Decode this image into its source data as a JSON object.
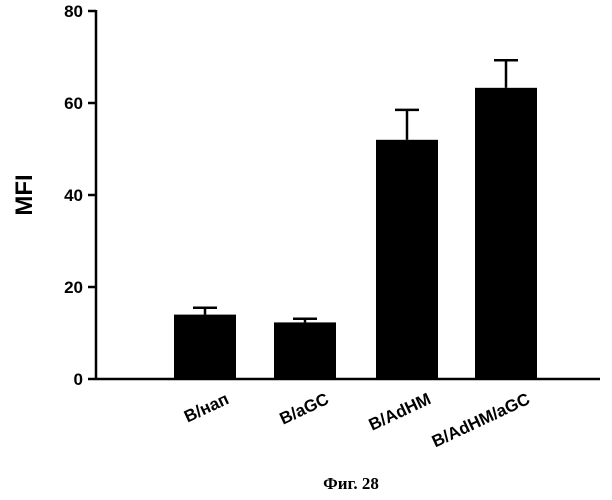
{
  "chart_data": {
    "type": "bar",
    "title": "",
    "xlabel": "",
    "ylabel": "MFI",
    "ylim": [
      0,
      80
    ],
    "yticks": [
      0,
      20,
      40,
      60,
      80
    ],
    "categories": [
      "B/нап",
      "B/aGC",
      "B/AdHM",
      "B/AdHM/aGC"
    ],
    "values": [
      14,
      12.3,
      52,
      63.3
    ],
    "errors": [
      1.5,
      0.8,
      6.5,
      6
    ],
    "grid": false,
    "bar_color": "#000000"
  },
  "caption": "Фиг. 28"
}
